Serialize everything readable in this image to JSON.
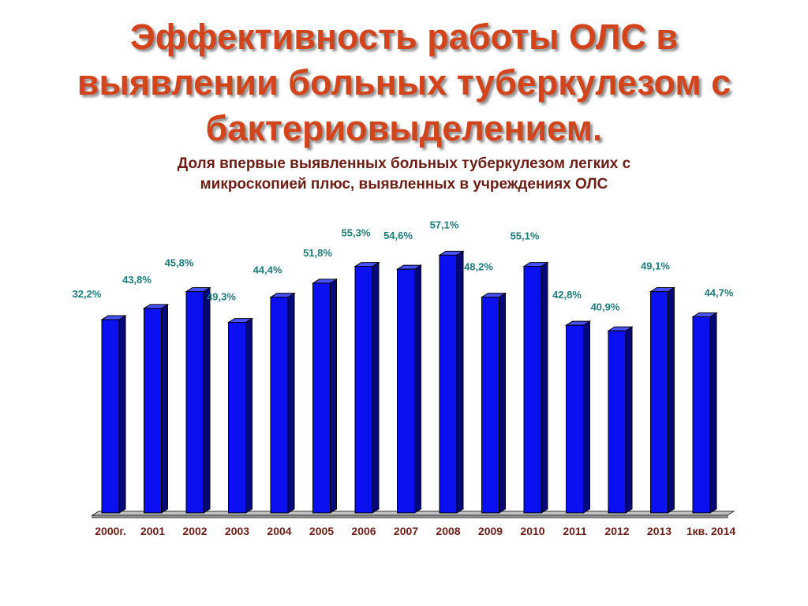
{
  "title": {
    "lines": [
      "Эффективность работы ОЛС в",
      "выявлении больных туберкулезом с",
      "бактериовыделением."
    ]
  },
  "colors": {
    "title": "#d2441c",
    "subtitle": "#6b1e16",
    "bar_front": "#0a10f0",
    "bar_side": "#05087a",
    "bar_top": "#4a52ff",
    "value_label": "#1f7a7a",
    "category_label": "#6b1e16",
    "floor": "#c0c0c0"
  },
  "chart_data": {
    "type": "bar",
    "title": "Доля впервые выявленных больных туберкулезом легких с микроскопией плюс, выявленных в учреждениях ОЛС",
    "title_lines": [
      "Доля впервые выявленных больных туберкулезом легких с",
      "микроскопией плюс, выявленных в учреждениях ОЛС"
    ],
    "categories": [
      "2000г.",
      "2001",
      "2002",
      "2003",
      "2004",
      "2005",
      "2006",
      "2007",
      "2008",
      "2009",
      "2010",
      "2011",
      "2012",
      "2013",
      "1кв. 2014"
    ],
    "values": [
      32.2,
      43.8,
      45.8,
      49.3,
      44.4,
      51.8,
      55.3,
      54.6,
      57.1,
      48.2,
      55.1,
      42.8,
      40.9,
      49.1,
      44.7
    ],
    "value_labels": [
      "32,2%",
      "43,8%",
      "45,8%",
      "49,3%",
      "44,4%",
      "51,8%",
      "55,3%",
      "54,6%",
      "57,1%",
      "48,2%",
      "55,1%",
      "42,8%",
      "40,9%",
      "49,1%",
      "44,7%"
    ],
    "bar_heights": [
      0.69,
      0.73,
      0.79,
      0.68,
      0.77,
      0.82,
      0.88,
      0.87,
      0.92,
      0.77,
      0.88,
      0.67,
      0.65,
      0.79,
      0.7
    ],
    "xlabel": "",
    "ylabel": "",
    "grid": false,
    "legend": "none",
    "three_d": true
  }
}
